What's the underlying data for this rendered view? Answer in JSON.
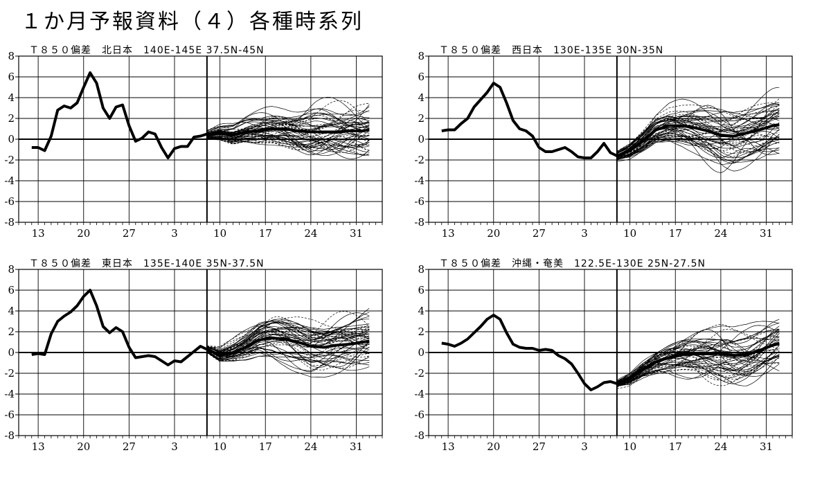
{
  "page_title": "１か月予報資料（４）各種時系列",
  "chart_data": [
    {
      "type": "line",
      "title": "Ｔ８５０偏差　北日本　140E-145E 37.5N-45N",
      "y_ticks": [
        "8",
        "6",
        "4",
        "2",
        "0",
        "-2",
        "-4",
        "-6",
        "-8"
      ],
      "ylim": [
        -8,
        8
      ],
      "x_tick_labels": [
        "13",
        "20",
        "27",
        "3",
        "10",
        "17",
        "24",
        "31"
      ],
      "x_tick_days": [
        0,
        7,
        14,
        21,
        28,
        35,
        42,
        49
      ],
      "xlim": [
        -3,
        53
      ],
      "forecast_start_day": 26,
      "observed": {
        "x": [
          -1,
          0,
          1,
          2,
          3,
          4,
          5,
          6,
          7,
          8,
          9,
          10,
          11,
          12,
          13,
          14,
          15,
          16,
          17,
          18,
          19,
          20,
          21,
          22,
          23,
          24,
          25,
          26
        ],
        "y": [
          -0.8,
          -0.8,
          -1.1,
          0.3,
          2.8,
          3.2,
          3.0,
          3.5,
          5.0,
          6.4,
          5.4,
          3.0,
          2.0,
          3.1,
          3.3,
          1.3,
          -0.2,
          0.1,
          0.7,
          0.5,
          -0.8,
          -1.8,
          -0.9,
          -0.7,
          -0.7,
          0.2,
          0.3,
          0.5
        ]
      },
      "ensemble_mean": {
        "x": [
          26,
          28,
          30,
          32,
          34,
          36,
          38,
          40,
          42,
          44,
          46,
          48,
          50,
          51
        ],
        "y": [
          0.4,
          0.6,
          0.4,
          0.7,
          0.8,
          1.0,
          1.0,
          0.8,
          0.7,
          0.7,
          0.7,
          0.8,
          0.8,
          0.9
        ]
      },
      "ensemble": {
        "members": 50,
        "spread_end": 3.4,
        "seed": 11
      }
    },
    {
      "type": "line",
      "title": "Ｔ８５０偏差　西日本　130E-135E 30N-35N",
      "y_ticks": [
        "8",
        "6",
        "4",
        "2",
        "0",
        "-2",
        "-4",
        "-6",
        "-8"
      ],
      "ylim": [
        -8,
        8
      ],
      "x_tick_labels": [
        "13",
        "20",
        "27",
        "3",
        "10",
        "17",
        "24",
        "31"
      ],
      "x_tick_days": [
        0,
        7,
        14,
        21,
        28,
        35,
        42,
        49
      ],
      "xlim": [
        -3,
        53
      ],
      "forecast_start_day": 26,
      "observed": {
        "x": [
          -1,
          0,
          1,
          2,
          3,
          4,
          5,
          6,
          7,
          8,
          9,
          10,
          11,
          12,
          13,
          14,
          15,
          16,
          17,
          18,
          19,
          20,
          21,
          22,
          23,
          24,
          25,
          26
        ],
        "y": [
          0.8,
          0.9,
          0.9,
          1.5,
          2.0,
          3.1,
          3.8,
          4.5,
          5.4,
          5.0,
          3.5,
          1.8,
          1.0,
          0.8,
          0.3,
          -0.8,
          -1.2,
          -1.2,
          -1.0,
          -0.8,
          -1.2,
          -1.7,
          -1.8,
          -1.8,
          -1.2,
          -0.4,
          -1.3,
          -1.6
        ]
      },
      "ensemble_mean": {
        "x": [
          26,
          28,
          30,
          32,
          34,
          36,
          38,
          40,
          42,
          44,
          46,
          48,
          50,
          51
        ],
        "y": [
          -1.6,
          -1.1,
          -0.2,
          0.9,
          1.3,
          1.3,
          1.1,
          0.8,
          0.4,
          0.3,
          0.6,
          0.9,
          1.3,
          1.4
        ]
      },
      "ensemble": {
        "members": 50,
        "spread_end": 3.8,
        "seed": 23
      }
    },
    {
      "type": "line",
      "title": "Ｔ８５０偏差　東日本　135E-140E 35N-37.5N",
      "y_ticks": [
        "8",
        "6",
        "4",
        "2",
        "0",
        "-2",
        "-4",
        "-6",
        "-8"
      ],
      "ylim": [
        -8,
        8
      ],
      "x_tick_labels": [
        "13",
        "20",
        "27",
        "3",
        "10",
        "17",
        "24",
        "31"
      ],
      "x_tick_days": [
        0,
        7,
        14,
        21,
        28,
        35,
        42,
        49
      ],
      "xlim": [
        -3,
        53
      ],
      "forecast_start_day": 26,
      "observed": {
        "x": [
          -1,
          0,
          1,
          2,
          3,
          4,
          5,
          6,
          7,
          8,
          9,
          10,
          11,
          12,
          13,
          14,
          15,
          16,
          17,
          18,
          19,
          20,
          21,
          22,
          23,
          24,
          25,
          26
        ],
        "y": [
          -0.2,
          -0.1,
          -0.2,
          1.8,
          3.0,
          3.5,
          3.9,
          4.5,
          5.4,
          6.0,
          4.5,
          2.5,
          1.9,
          2.4,
          2.0,
          0.5,
          -0.5,
          -0.4,
          -0.3,
          -0.4,
          -0.8,
          -1.2,
          -0.8,
          -0.9,
          -0.4,
          0.1,
          0.6,
          0.3
        ]
      },
      "ensemble_mean": {
        "x": [
          26,
          28,
          30,
          32,
          34,
          36,
          38,
          40,
          42,
          44,
          46,
          48,
          50,
          51
        ],
        "y": [
          0.3,
          -0.3,
          0.0,
          0.5,
          1.2,
          1.4,
          1.3,
          1.0,
          0.6,
          0.5,
          0.7,
          0.8,
          1.0,
          1.1
        ]
      },
      "ensemble": {
        "members": 50,
        "spread_end": 3.6,
        "seed": 37
      }
    },
    {
      "type": "line",
      "title": "Ｔ８５０偏差　沖縄・奄美　122.5E-130E 25N-27.5N",
      "y_ticks": [
        "8",
        "6",
        "4",
        "2",
        "0",
        "-2",
        "-4",
        "-6",
        "-8"
      ],
      "ylim": [
        -8,
        8
      ],
      "x_tick_labels": [
        "13",
        "20",
        "27",
        "3",
        "10",
        "17",
        "24",
        "31"
      ],
      "x_tick_days": [
        0,
        7,
        14,
        21,
        28,
        35,
        42,
        49
      ],
      "xlim": [
        -3,
        53
      ],
      "forecast_start_day": 26,
      "observed": {
        "x": [
          -1,
          0,
          1,
          2,
          3,
          4,
          5,
          6,
          7,
          8,
          9,
          10,
          11,
          12,
          13,
          14,
          15,
          16,
          17,
          18,
          19,
          20,
          21,
          22,
          23,
          24,
          25,
          26
        ],
        "y": [
          0.9,
          0.8,
          0.6,
          0.9,
          1.3,
          1.9,
          2.5,
          3.2,
          3.6,
          3.2,
          1.9,
          0.8,
          0.5,
          0.4,
          0.4,
          0.2,
          0.3,
          0.2,
          -0.3,
          -0.6,
          -1.1,
          -2.0,
          -3.0,
          -3.6,
          -3.3,
          -2.9,
          -2.8,
          -3.0
        ]
      },
      "ensemble_mean": {
        "x": [
          26,
          28,
          30,
          32,
          34,
          36,
          38,
          40,
          42,
          44,
          46,
          48,
          50,
          51
        ],
        "y": [
          -3.0,
          -2.5,
          -1.6,
          -0.9,
          -0.5,
          -0.2,
          -0.1,
          -0.1,
          -0.1,
          -0.3,
          -0.2,
          0.2,
          0.7,
          0.9
        ]
      },
      "ensemble": {
        "members": 50,
        "spread_end": 3.6,
        "seed": 53
      }
    }
  ]
}
